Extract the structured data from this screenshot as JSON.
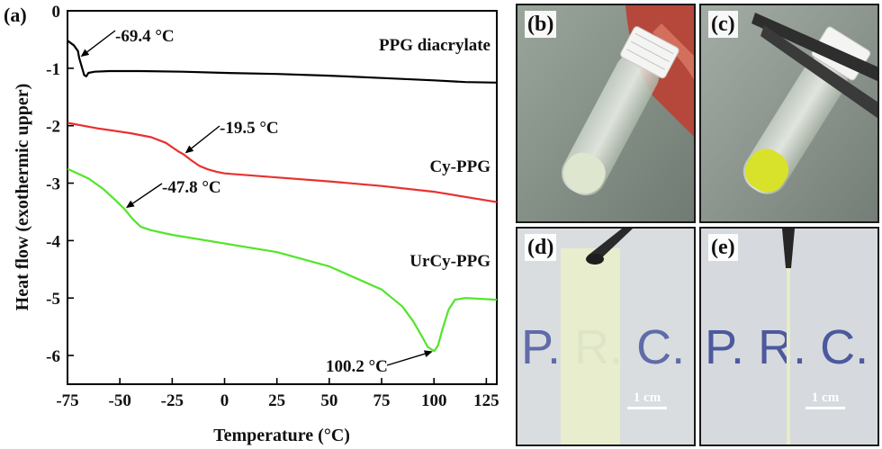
{
  "panel_a_label": "(a)",
  "chart_data": {
    "type": "line",
    "xlabel": "Temperature (°C)",
    "ylabel": "Heat flow (exothermic upper)",
    "xlim": [
      -75,
      130
    ],
    "ylim": [
      -6.5,
      0
    ],
    "xticks": [
      -75,
      -50,
      -25,
      0,
      25,
      50,
      75,
      100,
      125
    ],
    "yticks": [
      0,
      -1,
      -2,
      -3,
      -4,
      -5,
      -6
    ],
    "series": [
      {
        "name": "PPG diacrylate",
        "color": "#000000",
        "x": [
          -75,
          -72,
          -70,
          -69.4,
          -68,
          -67,
          -66,
          -65,
          -62,
          -55,
          -40,
          -20,
          0,
          25,
          50,
          75,
          100,
          115,
          130
        ],
        "y": [
          -0.52,
          -0.6,
          -0.7,
          -0.82,
          -1.0,
          -1.12,
          -1.14,
          -1.08,
          -1.06,
          -1.05,
          -1.05,
          -1.06,
          -1.08,
          -1.1,
          -1.13,
          -1.17,
          -1.21,
          -1.24,
          -1.25
        ]
      },
      {
        "name": "Cy-PPG",
        "color": "#e8312f",
        "x": [
          -75,
          -60,
          -45,
          -35,
          -28,
          -22,
          -19.5,
          -16,
          -12,
          -8,
          -4,
          0,
          25,
          50,
          75,
          100,
          130
        ],
        "y": [
          -1.95,
          -2.05,
          -2.13,
          -2.2,
          -2.3,
          -2.45,
          -2.5,
          -2.6,
          -2.7,
          -2.76,
          -2.8,
          -2.83,
          -2.9,
          -2.97,
          -3.05,
          -3.15,
          -3.33
        ]
      },
      {
        "name": "UrCy-PPG",
        "color": "#52e52a",
        "x": [
          -75,
          -65,
          -58,
          -52,
          -47.8,
          -44,
          -40,
          -35,
          -25,
          0,
          25,
          50,
          75,
          85,
          90,
          94,
          97,
          99,
          100.2,
          102,
          104,
          107,
          110,
          115,
          130
        ],
        "y": [
          -2.75,
          -2.92,
          -3.1,
          -3.3,
          -3.45,
          -3.62,
          -3.76,
          -3.82,
          -3.9,
          -4.05,
          -4.2,
          -4.45,
          -4.85,
          -5.15,
          -5.4,
          -5.65,
          -5.85,
          -5.9,
          -5.92,
          -5.82,
          -5.55,
          -5.2,
          -5.03,
          -5.0,
          -5.03
        ]
      }
    ],
    "annotations": [
      {
        "text": "-69.4 °C",
        "x": -69.4,
        "y": -0.82
      },
      {
        "text": "-19.5 °C",
        "x": -19.5,
        "y": -2.5
      },
      {
        "text": "-47.8 °C",
        "x": -47.8,
        "y": -3.45
      },
      {
        "text": "100.2 °C",
        "x": 100.2,
        "y": -5.92
      }
    ],
    "grid": false
  },
  "photos": [
    {
      "label": "(b)"
    },
    {
      "label": "(c)"
    },
    {
      "label": "(d)",
      "scale": "1 cm"
    },
    {
      "label": "(e)",
      "scale": "1 cm"
    }
  ]
}
